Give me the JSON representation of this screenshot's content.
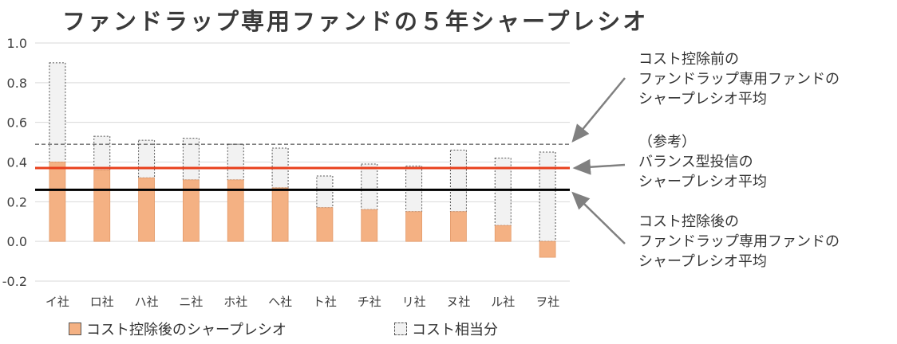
{
  "chart_data": {
    "type": "bar",
    "title": "ファンドラップ専用ファンドの５年シャープレシオ",
    "categories": [
      "イ社",
      "ロ社",
      "ハ社",
      "ニ社",
      "ホ社",
      "ヘ社",
      "ト社",
      "チ社",
      "リ社",
      "ヌ社",
      "ル社",
      "ヲ社"
    ],
    "series": [
      {
        "name": "コスト控除後のシャープレシオ",
        "values": [
          0.4,
          0.36,
          0.32,
          0.31,
          0.31,
          0.27,
          0.17,
          0.16,
          0.15,
          0.15,
          0.08,
          -0.08
        ]
      },
      {
        "name": "コスト相当分",
        "values": [
          0.5,
          0.17,
          0.19,
          0.21,
          0.18,
          0.2,
          0.16,
          0.23,
          0.23,
          0.31,
          0.34,
          0.53
        ]
      }
    ],
    "yticks": [
      "1.0",
      "0.8",
      "0.6",
      "0.4",
      "0.2",
      "0.0",
      "-0.2"
    ],
    "ylim": [
      -0.2,
      1.0
    ],
    "reference_lines": [
      {
        "label": "コスト控除前のファンドラップ専用ファンドのシャープレシオ平均",
        "value": 0.49,
        "style": "dashed",
        "color": "#333333"
      },
      {
        "label": "（参考）バランス型投信のシャープレシオ平均",
        "value": 0.37,
        "style": "solid",
        "color": "#e8401c"
      },
      {
        "label": "コスト控除後のファンドラップ専用ファンドのシャープレシオ平均",
        "value": 0.26,
        "style": "solid",
        "color": "#000000"
      }
    ],
    "colors": {
      "after_cost": "#f4b183",
      "cost": "#f2f2f2",
      "arrow": "#808080",
      "grid": "#d9d9d9"
    },
    "legend_position": "bottom",
    "grid": true
  },
  "annotations": [
    [
      "コスト控除前の",
      "ファンドラップ専用ファンドの",
      "シャープレシオ平均"
    ],
    [
      "（参考）",
      "バランス型投信の",
      "シャープレシオ平均"
    ],
    [
      "コスト控除後の",
      "ファンドラップ専用ファンドの",
      "シャープレシオ平均"
    ]
  ]
}
